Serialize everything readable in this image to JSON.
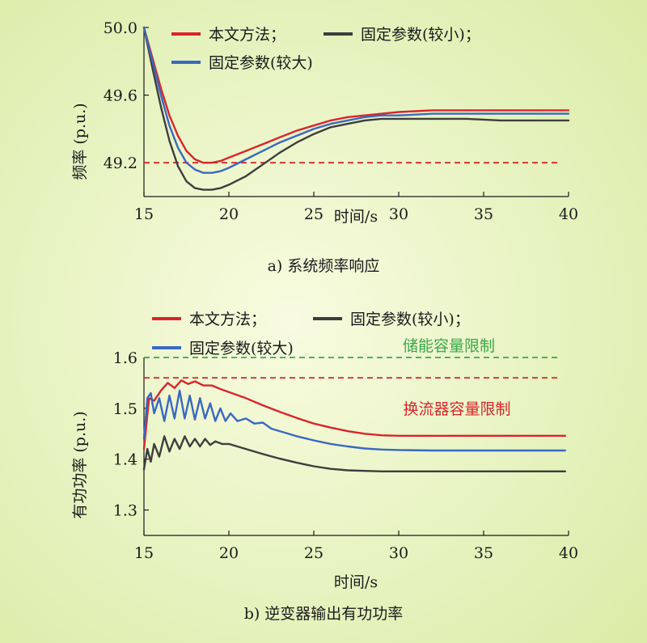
{
  "colors": {
    "background_center": "#f8fbe0",
    "background_edge": "#d9eca6",
    "method": "#d9252c",
    "fixed_small": "#3d3d3d",
    "fixed_large": "#3a68c1",
    "storage_limit": "#3aa84a",
    "converter_limit": "#d9252c"
  },
  "chart_data": [
    {
      "type": "line",
      "caption": "a) 系统频率响应",
      "xlabel": "时间/s",
      "ylabel": "频率 (p.u.)",
      "xlim": [
        15,
        40
      ],
      "ylim": [
        49.0,
        50.0
      ],
      "xticks": [
        15,
        20,
        25,
        30,
        35,
        40
      ],
      "xtick_labels": [
        "15",
        "20",
        "25",
        "30",
        "35",
        "40"
      ],
      "yticks": [
        49.2,
        49.6,
        50.0
      ],
      "ytick_labels": [
        "49.2",
        "49.6",
        "50.0"
      ],
      "grid": false,
      "legend": [
        {
          "label": "本文方法；",
          "color_key": "method"
        },
        {
          "label": "固定参数(较小)；",
          "color_key": "fixed_small"
        },
        {
          "label": "固定参数(较大)",
          "color_key": "fixed_large"
        }
      ],
      "legend_placement": "top",
      "series": [
        {
          "color_key": "method",
          "x": [
            15,
            15.5,
            16,
            16.5,
            17,
            17.5,
            18,
            18.5,
            19,
            19.5,
            20,
            21,
            22,
            23,
            24,
            25,
            26,
            27,
            28,
            29,
            30,
            32,
            34,
            36,
            38,
            40
          ],
          "y": [
            50.0,
            49.82,
            49.64,
            49.48,
            49.36,
            49.27,
            49.22,
            49.2,
            49.2,
            49.21,
            49.23,
            49.27,
            49.31,
            49.35,
            49.39,
            49.42,
            49.45,
            49.47,
            49.48,
            49.49,
            49.5,
            49.51,
            49.51,
            49.51,
            49.51,
            49.51
          ]
        },
        {
          "color_key": "fixed_small",
          "x": [
            15,
            15.5,
            16,
            16.5,
            17,
            17.5,
            18,
            18.5,
            19,
            19.5,
            20,
            21,
            22,
            23,
            24,
            25,
            26,
            27,
            28,
            29,
            30,
            32,
            34,
            36,
            38,
            40
          ],
          "y": [
            50.0,
            49.76,
            49.53,
            49.33,
            49.18,
            49.09,
            49.05,
            49.04,
            49.04,
            49.05,
            49.07,
            49.12,
            49.19,
            49.26,
            49.32,
            49.37,
            49.41,
            49.43,
            49.45,
            49.46,
            49.46,
            49.46,
            49.46,
            49.45,
            49.45,
            49.45
          ]
        },
        {
          "color_key": "fixed_large",
          "x": [
            15,
            15.5,
            16,
            16.5,
            17,
            17.5,
            18,
            18.5,
            19,
            19.5,
            20,
            21,
            22,
            23,
            24,
            25,
            26,
            27,
            28,
            29,
            30,
            32,
            34,
            36,
            38,
            40
          ],
          "y": [
            50.0,
            49.8,
            49.6,
            49.42,
            49.29,
            49.2,
            49.16,
            49.14,
            49.14,
            49.15,
            49.17,
            49.22,
            49.27,
            49.32,
            49.36,
            49.4,
            49.43,
            49.45,
            49.47,
            49.48,
            49.48,
            49.49,
            49.49,
            49.49,
            49.49,
            49.49
          ]
        }
      ],
      "reference_lines": [
        {
          "y": 49.2,
          "x_range": [
            15,
            39.5
          ],
          "style": "dashed",
          "color_key": "method"
        }
      ]
    },
    {
      "type": "line",
      "caption": "b) 逆变器输出有功功率",
      "xlabel": "时间/s",
      "ylabel": "有功功率 (p.u.)",
      "xlim": [
        15,
        40
      ],
      "ylim": [
        1.25,
        1.6
      ],
      "xticks": [
        15,
        20,
        25,
        30,
        35,
        40
      ],
      "xtick_labels": [
        "15",
        "20",
        "25",
        "30",
        "35",
        "40"
      ],
      "yticks": [
        1.3,
        1.4,
        1.5,
        1.6
      ],
      "ytick_labels": [
        "1.3",
        "1.4",
        "1.5",
        "1.6"
      ],
      "grid": false,
      "legend": [
        {
          "label": "本文方法；",
          "color_key": "method"
        },
        {
          "label": "固定参数(较小)；",
          "color_key": "fixed_small"
        },
        {
          "label": "固定参数(较大)",
          "color_key": "fixed_large"
        }
      ],
      "legend_placement": "top",
      "series": [
        {
          "color_key": "method",
          "x": [
            15,
            15.3,
            15.6,
            16,
            16.4,
            16.8,
            17.2,
            17.6,
            18,
            18.5,
            19,
            19.5,
            20,
            21,
            22,
            23,
            24,
            25,
            26,
            27,
            28,
            29,
            30,
            32,
            34,
            36,
            38,
            39.8
          ],
          "y": [
            1.42,
            1.52,
            1.515,
            1.535,
            1.55,
            1.54,
            1.555,
            1.548,
            1.553,
            1.545,
            1.545,
            1.538,
            1.532,
            1.52,
            1.506,
            1.493,
            1.481,
            1.47,
            1.462,
            1.455,
            1.45,
            1.447,
            1.446,
            1.446,
            1.446,
            1.446,
            1.446,
            1.446
          ]
        },
        {
          "color_key": "fixed_large",
          "x": [
            15,
            15.2,
            15.4,
            15.6,
            15.9,
            16.2,
            16.5,
            16.8,
            17.1,
            17.4,
            17.7,
            18,
            18.3,
            18.6,
            18.9,
            19.2,
            19.5,
            19.8,
            20.1,
            20.5,
            21,
            21.5,
            22,
            22.5,
            23,
            24,
            25,
            26,
            27,
            28,
            29,
            30,
            32,
            34,
            36,
            38,
            39.8
          ],
          "y": [
            1.44,
            1.52,
            1.53,
            1.49,
            1.52,
            1.475,
            1.525,
            1.48,
            1.535,
            1.48,
            1.525,
            1.478,
            1.52,
            1.48,
            1.51,
            1.475,
            1.5,
            1.475,
            1.49,
            1.475,
            1.48,
            1.47,
            1.472,
            1.46,
            1.455,
            1.445,
            1.437,
            1.43,
            1.425,
            1.421,
            1.419,
            1.418,
            1.417,
            1.417,
            1.417,
            1.417,
            1.417
          ]
        },
        {
          "color_key": "fixed_small",
          "x": [
            15,
            15.2,
            15.4,
            15.6,
            15.9,
            16.2,
            16.5,
            16.8,
            17.1,
            17.4,
            17.7,
            18,
            18.3,
            18.6,
            18.9,
            19.2,
            19.6,
            20,
            21,
            22,
            23,
            24,
            25,
            26,
            27,
            28,
            29,
            30,
            32,
            34,
            36,
            38,
            39.8
          ],
          "y": [
            1.38,
            1.42,
            1.395,
            1.43,
            1.405,
            1.445,
            1.415,
            1.44,
            1.42,
            1.445,
            1.425,
            1.44,
            1.425,
            1.44,
            1.428,
            1.435,
            1.43,
            1.43,
            1.42,
            1.41,
            1.401,
            1.393,
            1.386,
            1.381,
            1.378,
            1.377,
            1.376,
            1.376,
            1.376,
            1.376,
            1.376,
            1.376,
            1.376
          ]
        }
      ],
      "reference_lines": [
        {
          "y": 1.6,
          "x_range": [
            15,
            39.5
          ],
          "style": "dashed",
          "color_key": "storage_limit",
          "label": "储能容量限制"
        },
        {
          "y": 1.56,
          "x_range": [
            15,
            39.5
          ],
          "style": "dashed",
          "color_key": "converter_limit",
          "label": "换流器容量限制"
        }
      ]
    }
  ]
}
